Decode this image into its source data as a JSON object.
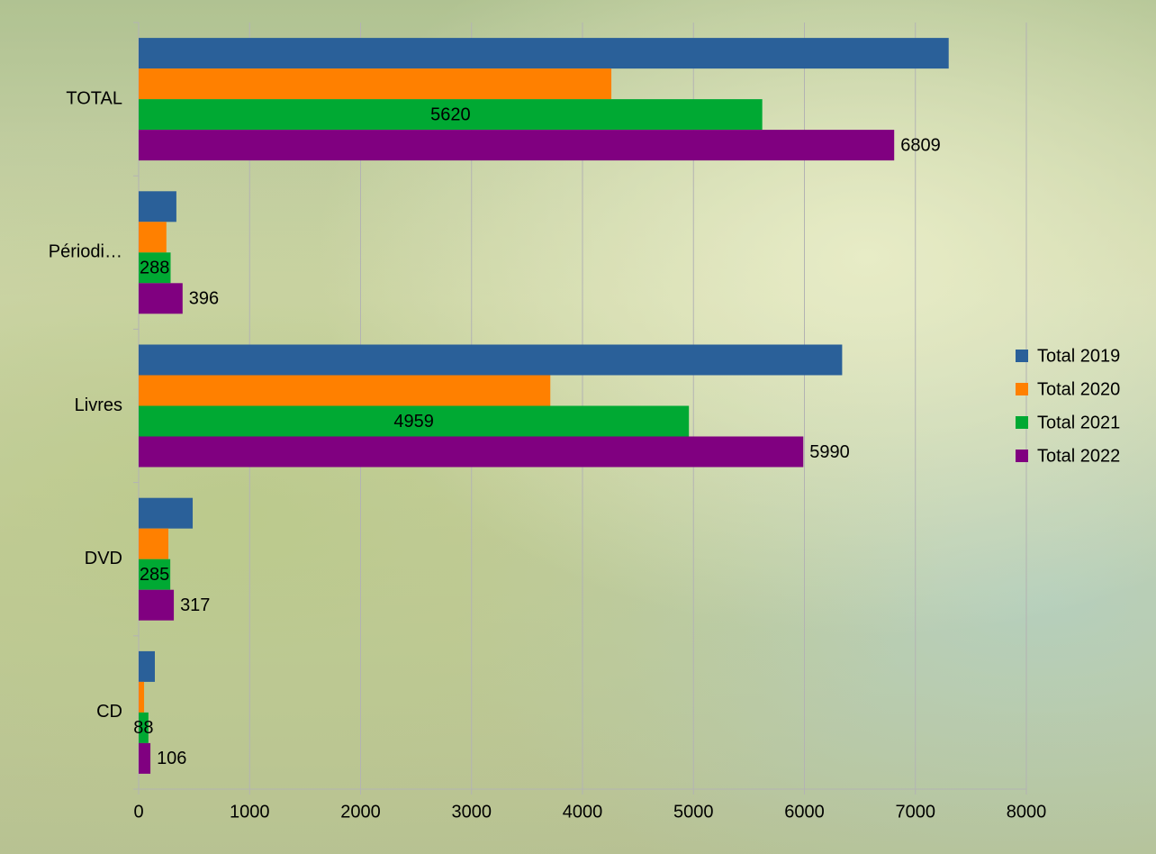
{
  "chart_data": {
    "type": "hbar",
    "categories": [
      "TOTAL",
      "Périodi…",
      "Livres",
      "DVD",
      "CD"
    ],
    "series": [
      {
        "name": "Total 2019",
        "color": "#2a6099",
        "values": [
          7300,
          340,
          6340,
          487,
          146
        ]
      },
      {
        "name": "Total 2020",
        "color": "#ff8000",
        "values": [
          4260,
          250,
          3710,
          268,
          49
        ]
      },
      {
        "name": "Total 2021",
        "color": "#00a933",
        "values": [
          5620,
          288,
          4959,
          285,
          88
        ],
        "data_labels": "center"
      },
      {
        "name": "Total 2022",
        "color": "#800080",
        "values": [
          6809,
          396,
          5990,
          317,
          106
        ],
        "data_labels": "outside_end"
      }
    ],
    "xlim": [
      0,
      8000
    ],
    "xticks": [
      0,
      1000,
      2000,
      3000,
      4000,
      5000,
      6000,
      7000,
      8000
    ],
    "grid": true,
    "legend": "right"
  }
}
